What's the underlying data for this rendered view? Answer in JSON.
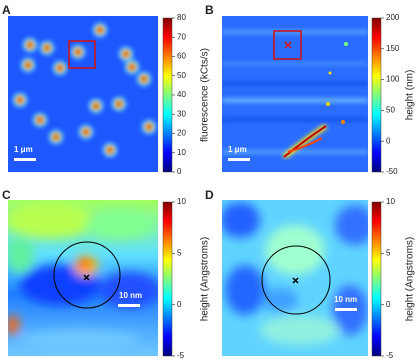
{
  "chart_data": [
    {
      "type": "heatmap",
      "panel": "A",
      "colorbar_label": "fluorescence (kCts/s)",
      "clim": [
        0,
        80
      ],
      "cticks": [
        0,
        10,
        20,
        30,
        40,
        50,
        60,
        70,
        80
      ],
      "scale_bar": "1 μm"
    },
    {
      "type": "heatmap",
      "panel": "B",
      "colorbar_label": "height (nm)",
      "clim": [
        -50,
        200
      ],
      "cticks": [
        -50,
        0,
        50,
        100,
        150,
        200
      ],
      "scale_bar": "1 μm"
    },
    {
      "type": "heatmap",
      "panel": "C",
      "colorbar_label": "height (Angstroms)",
      "clim": [
        -5,
        10
      ],
      "cticks": [
        -5,
        0,
        5,
        10
      ],
      "scale_bar": "10 nm"
    },
    {
      "type": "heatmap",
      "panel": "D",
      "colorbar_label": "height (Angstroms)",
      "clim": [
        -5,
        10
      ],
      "cticks": [
        -5,
        0,
        5,
        10
      ],
      "scale_bar": "10 nm"
    }
  ]
}
